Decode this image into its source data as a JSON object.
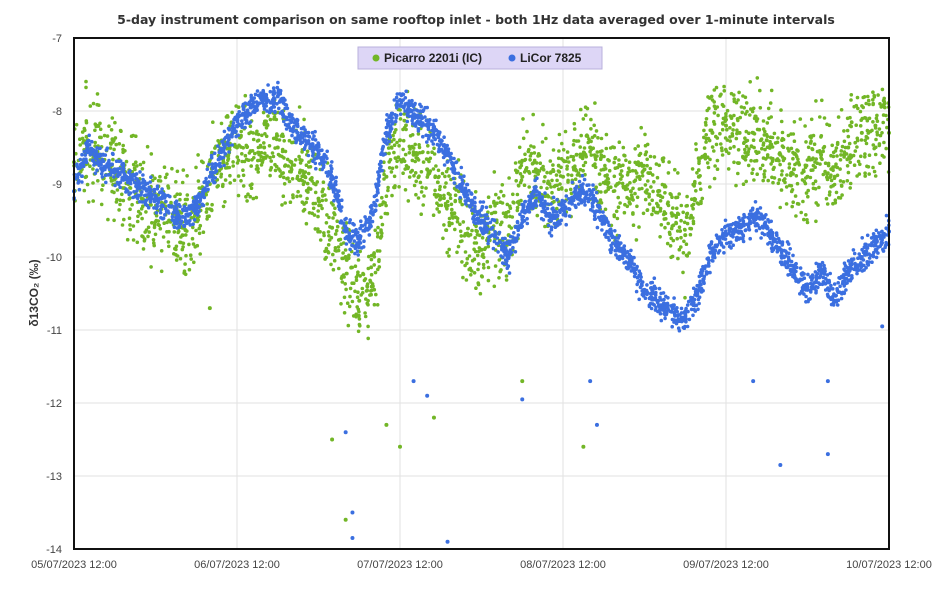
{
  "chart_data": {
    "type": "scatter",
    "title": "5-day instrument comparison on same rooftop inlet - both 1Hz data averaged over 1-minute intervals",
    "xlabel": "",
    "ylabel": "δ13CO₂ (‰)",
    "ylim": [
      -14,
      -7
    ],
    "yticks": [
      "-7",
      "-8",
      "-9",
      "-10",
      "-11",
      "-12",
      "-13",
      "-14"
    ],
    "xlim": [
      "05/07/2023 12:00",
      "10/07/2023 12:00"
    ],
    "xticks": [
      "05/07/2023 12:00",
      "06/07/2023 12:00",
      "07/07/2023 12:00",
      "08/07/2023 12:00",
      "09/07/2023 12:00",
      "10/07/2023 12:00"
    ],
    "grid": true,
    "legend_position": "top-center",
    "x": [
      "05/07/2023 12:00",
      "05/07/2023 14:00",
      "05/07/2023 16:00",
      "05/07/2023 18:00",
      "05/07/2023 20:00",
      "05/07/2023 22:00",
      "06/07/2023 00:00",
      "06/07/2023 02:00",
      "06/07/2023 04:00",
      "06/07/2023 06:00",
      "06/07/2023 08:00",
      "06/07/2023 10:00",
      "06/07/2023 12:00",
      "06/07/2023 14:00",
      "06/07/2023 16:00",
      "06/07/2023 18:00",
      "06/07/2023 20:00",
      "06/07/2023 22:00",
      "07/07/2023 00:00",
      "07/07/2023 02:00",
      "07/07/2023 04:00",
      "07/07/2023 06:00",
      "07/07/2023 08:00",
      "07/07/2023 10:00",
      "07/07/2023 12:00",
      "07/07/2023 14:00",
      "07/07/2023 16:00",
      "07/07/2023 18:00",
      "07/07/2023 20:00",
      "07/07/2023 22:00",
      "08/07/2023 00:00",
      "08/07/2023 02:00",
      "08/07/2023 04:00",
      "08/07/2023 06:00",
      "08/07/2023 08:00",
      "08/07/2023 10:00",
      "08/07/2023 12:00",
      "08/07/2023 14:00",
      "08/07/2023 16:00",
      "08/07/2023 18:00",
      "08/07/2023 20:00",
      "08/07/2023 22:00",
      "09/07/2023 00:00",
      "09/07/2023 02:00",
      "09/07/2023 04:00",
      "09/07/2023 06:00",
      "09/07/2023 08:00",
      "09/07/2023 10:00",
      "09/07/2023 12:00",
      "09/07/2023 14:00",
      "09/07/2023 16:00",
      "09/07/2023 18:00",
      "09/07/2023 20:00",
      "09/07/2023 22:00",
      "10/07/2023 00:00",
      "10/07/2023 02:00",
      "10/07/2023 04:00",
      "10/07/2023 06:00",
      "10/07/2023 08:00",
      "10/07/2023 10:00",
      "10/07/2023 12:00"
    ],
    "series": [
      {
        "name": "Picarro 2201i (IC)",
        "color": "#72b626",
        "values": [
          -8.7,
          -8.4,
          -8.6,
          -8.8,
          -9.0,
          -9.2,
          -9.4,
          -9.5,
          -9.6,
          -9.5,
          -9.0,
          -8.7,
          -8.5,
          -8.55,
          -8.5,
          -8.5,
          -8.7,
          -8.9,
          -9.2,
          -9.6,
          -10.0,
          -10.6,
          -10.4,
          -8.9,
          -8.4,
          -8.6,
          -8.8,
          -9.2,
          -9.4,
          -9.7,
          -9.9,
          -9.5,
          -9.7,
          -8.9,
          -8.8,
          -9.0,
          -8.9,
          -8.6,
          -8.5,
          -8.8,
          -9.0,
          -9.1,
          -8.8,
          -9.1,
          -9.4,
          -9.7,
          -8.9,
          -8.3,
          -8.2,
          -8.3,
          -8.3,
          -8.4,
          -8.6,
          -8.8,
          -8.9,
          -8.6,
          -8.9,
          -8.5,
          -8.3,
          -8.2,
          -8.3
        ],
        "outliers": [
          [
            "06/07/2023 08:00",
            -10.7
          ],
          [
            "07/07/2023 02:00",
            -12.5
          ],
          [
            "07/07/2023 04:00",
            -13.6
          ],
          [
            "07/07/2023 10:00",
            -12.3
          ],
          [
            "07/07/2023 12:00",
            -12.6
          ],
          [
            "07/07/2023 17:00",
            -12.2
          ],
          [
            "08/07/2023 06:00",
            -11.7
          ],
          [
            "08/07/2023 15:00",
            -12.6
          ]
        ]
      },
      {
        "name": "LiCor 7825",
        "color": "#3b6fe0",
        "values": [
          -9.1,
          -8.5,
          -8.7,
          -8.8,
          -8.95,
          -9.05,
          -9.2,
          -9.3,
          -9.45,
          -9.3,
          -8.9,
          -8.55,
          -8.2,
          -7.95,
          -7.85,
          -7.8,
          -8.15,
          -8.4,
          -8.55,
          -8.9,
          -9.65,
          -9.8,
          -9.4,
          -8.3,
          -7.85,
          -8.05,
          -8.2,
          -8.4,
          -8.8,
          -9.2,
          -9.5,
          -9.7,
          -10.0,
          -9.45,
          -9.1,
          -9.5,
          -9.35,
          -9.15,
          -9.15,
          -9.5,
          -9.85,
          -10.1,
          -10.45,
          -10.6,
          -10.75,
          -10.85,
          -10.45,
          -9.9,
          -9.7,
          -9.65,
          -9.45,
          -9.6,
          -9.9,
          -10.2,
          -10.45,
          -10.2,
          -10.6,
          -10.2,
          -10.0,
          -9.8,
          -9.65
        ],
        "outliers": [
          [
            "07/07/2023 04:00",
            -12.4
          ],
          [
            "07/07/2023 05:00",
            -13.5
          ],
          [
            "07/07/2023 05:00",
            -13.85
          ],
          [
            "07/07/2023 14:00",
            -11.7
          ],
          [
            "07/07/2023 16:00",
            -11.9
          ],
          [
            "07/07/2023 19:00",
            -13.9
          ],
          [
            "08/07/2023 06:00",
            -11.95
          ],
          [
            "08/07/2023 16:00",
            -11.7
          ],
          [
            "08/07/2023 17:00",
            -12.3
          ],
          [
            "09/07/2023 20:00",
            -12.85
          ],
          [
            "09/07/2023 16:00",
            -11.7
          ],
          [
            "10/07/2023 03:00",
            -11.7
          ],
          [
            "10/07/2023 03:00",
            -12.7
          ],
          [
            "10/07/2023 11:00",
            -10.95
          ]
        ]
      }
    ]
  }
}
